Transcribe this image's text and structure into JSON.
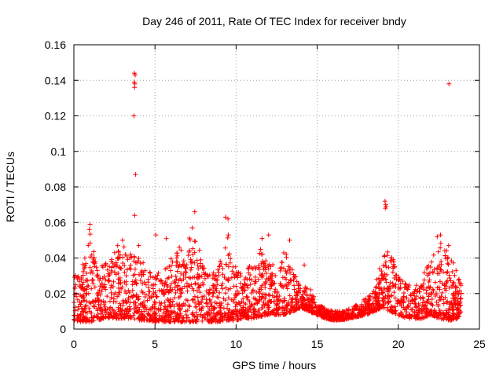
{
  "chart_data": {
    "type": "scatter",
    "title": "Day 246 of 2011, Rate Of TEC Index for receiver bndy",
    "xlabel": "GPS time / hours",
    "ylabel": "ROTI / TECUs",
    "xlim": [
      0,
      25
    ],
    "ylim": [
      0,
      0.16
    ],
    "xticks": [
      0,
      5,
      10,
      15,
      20,
      25
    ],
    "yticks": [
      0,
      0.02,
      0.04,
      0.06,
      0.08,
      0.1,
      0.12,
      0.14,
      0.16
    ],
    "xtick_labels": [
      "0",
      "5",
      "10",
      "15",
      "20",
      "25"
    ],
    "ytick_labels": [
      "0",
      "0.02",
      "0.04",
      "0.06",
      "0.08",
      "0.1",
      "0.12",
      "0.14",
      "0.16"
    ],
    "grid": true,
    "marker": "+",
    "color": "#ff0000",
    "series": [
      {
        "name": "ROTI",
        "x_range": [
          0,
          23.9
        ],
        "profile_note": "dense scatter of ROTI samples; band envelope (hour, low, high) below",
        "envelope": [
          [
            0.0,
            0.005,
            0.03
          ],
          [
            0.5,
            0.004,
            0.035
          ],
          [
            1.0,
            0.004,
            0.055
          ],
          [
            1.5,
            0.005,
            0.035
          ],
          [
            2.0,
            0.006,
            0.04
          ],
          [
            2.5,
            0.006,
            0.045
          ],
          [
            3.0,
            0.006,
            0.048
          ],
          [
            3.5,
            0.006,
            0.045
          ],
          [
            4.0,
            0.005,
            0.04
          ],
          [
            4.5,
            0.005,
            0.035
          ],
          [
            5.0,
            0.004,
            0.03
          ],
          [
            5.5,
            0.004,
            0.035
          ],
          [
            6.0,
            0.004,
            0.04
          ],
          [
            6.5,
            0.004,
            0.045
          ],
          [
            7.0,
            0.004,
            0.05
          ],
          [
            7.5,
            0.004,
            0.055
          ],
          [
            8.0,
            0.004,
            0.035
          ],
          [
            8.5,
            0.004,
            0.03
          ],
          [
            9.0,
            0.004,
            0.04
          ],
          [
            9.5,
            0.005,
            0.055
          ],
          [
            10.0,
            0.005,
            0.035
          ],
          [
            10.5,
            0.006,
            0.03
          ],
          [
            11.0,
            0.006,
            0.04
          ],
          [
            11.5,
            0.007,
            0.045
          ],
          [
            12.0,
            0.008,
            0.04
          ],
          [
            12.5,
            0.008,
            0.035
          ],
          [
            13.0,
            0.008,
            0.045
          ],
          [
            13.5,
            0.01,
            0.04
          ],
          [
            14.0,
            0.012,
            0.022
          ],
          [
            14.5,
            0.01,
            0.025
          ],
          [
            15.0,
            0.008,
            0.015
          ],
          [
            15.5,
            0.006,
            0.012
          ],
          [
            16.0,
            0.005,
            0.01
          ],
          [
            16.5,
            0.005,
            0.01
          ],
          [
            17.0,
            0.006,
            0.012
          ],
          [
            17.5,
            0.007,
            0.014
          ],
          [
            18.0,
            0.008,
            0.018
          ],
          [
            18.5,
            0.01,
            0.022
          ],
          [
            19.0,
            0.012,
            0.04
          ],
          [
            19.5,
            0.01,
            0.045
          ],
          [
            20.0,
            0.008,
            0.03
          ],
          [
            20.5,
            0.006,
            0.025
          ],
          [
            21.0,
            0.006,
            0.025
          ],
          [
            21.5,
            0.006,
            0.03
          ],
          [
            22.0,
            0.008,
            0.04
          ],
          [
            22.5,
            0.006,
            0.05
          ],
          [
            23.0,
            0.005,
            0.045
          ],
          [
            23.5,
            0.005,
            0.035
          ],
          [
            23.9,
            0.008,
            0.025
          ]
        ],
        "outliers": [
          [
            3.73,
            0.144
          ],
          [
            3.78,
            0.143
          ],
          [
            3.72,
            0.139
          ],
          [
            3.76,
            0.138
          ],
          [
            3.74,
            0.136
          ],
          [
            3.7,
            0.12
          ],
          [
            3.8,
            0.087
          ],
          [
            3.75,
            0.064
          ],
          [
            19.18,
            0.072
          ],
          [
            19.22,
            0.07
          ],
          [
            19.25,
            0.069
          ],
          [
            19.2,
            0.068
          ],
          [
            23.12,
            0.138
          ],
          [
            7.45,
            0.066
          ],
          [
            9.35,
            0.063
          ],
          [
            9.5,
            0.062
          ],
          [
            1.0,
            0.059
          ],
          [
            0.95,
            0.056
          ],
          [
            7.3,
            0.057
          ],
          [
            22.4,
            0.052
          ],
          [
            22.6,
            0.053
          ],
          [
            12.0,
            0.053
          ],
          [
            13.3,
            0.05
          ],
          [
            5.05,
            0.053
          ],
          [
            5.7,
            0.051
          ],
          [
            11.6,
            0.051
          ],
          [
            14.2,
            0.036
          ],
          [
            23.1,
            0.047
          ],
          [
            4.0,
            0.047
          ],
          [
            6.5,
            0.046
          ],
          [
            3.0,
            0.05
          ],
          [
            2.7,
            0.047
          ]
        ]
      }
    ]
  }
}
